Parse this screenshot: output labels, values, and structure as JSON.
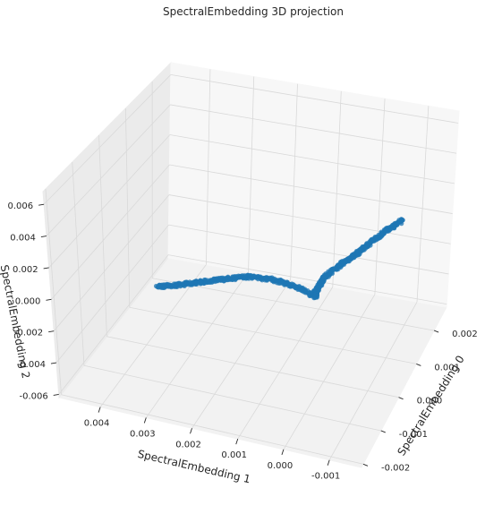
{
  "chart_data": {
    "type": "scatter3d",
    "title": "SpectralEmbedding 3D projection",
    "xlabel": "SpectralEmbedding 0",
    "ylabel": "SpectralEmbedding 1",
    "zlabel": "SpectralEmbedding 2",
    "xlim": [
      -0.0021,
      0.0027
    ],
    "ylim": [
      -0.0017,
      0.0049
    ],
    "zlim": [
      -0.0062,
      0.0068
    ],
    "x_ticks": [
      "-0.002",
      "-0.001",
      "0.000",
      "0.001",
      "0.002"
    ],
    "x_tick_values": [
      -0.002,
      -0.001,
      0.0,
      0.001,
      0.002
    ],
    "y_ticks": [
      "-0.001",
      "0.000",
      "0.001",
      "0.002",
      "0.003",
      "0.004"
    ],
    "y_tick_values": [
      -0.001,
      0.0,
      0.001,
      0.002,
      0.003,
      0.004
    ],
    "z_ticks": [
      "-0.006",
      "-0.004",
      "-0.002",
      "0.000",
      "0.002",
      "0.004",
      "0.006"
    ],
    "z_tick_values": [
      -0.006,
      -0.004,
      -0.002,
      0.0,
      0.002,
      0.004,
      0.006
    ],
    "grid": true,
    "marker_color": "#1f77b4",
    "branches": [
      {
        "description_free_points": true,
        "points": [
          [
            0.0004,
            -0.0015,
            0.0063
          ],
          [
            0.0003,
            -0.0012,
            0.0055
          ],
          [
            0.0002,
            -0.0009,
            0.0046
          ],
          [
            0.0001,
            -0.0006,
            0.0036
          ],
          [
            0.0001,
            -0.0003,
            0.0026
          ],
          [
            0.0,
            0.0,
            0.0017
          ],
          [
            0.0,
            0.0001,
            0.001
          ],
          [
            0.0,
            0.0002,
            0.0004
          ],
          [
            0.0,
            0.0002,
            0.0
          ]
        ]
      },
      {
        "description_free_points": true,
        "points": [
          [
            0.0,
            0.0002,
            0.0
          ],
          [
            0.0003,
            0.0008,
            -0.0005
          ],
          [
            0.0005,
            0.0014,
            -0.001
          ],
          [
            0.0007,
            0.002,
            -0.0017
          ],
          [
            0.0008,
            0.0026,
            -0.0025
          ],
          [
            0.0009,
            0.0032,
            -0.0033
          ],
          [
            0.001,
            0.0038,
            -0.0041
          ],
          [
            0.0011,
            0.0043,
            -0.0047
          ]
        ]
      }
    ]
  }
}
